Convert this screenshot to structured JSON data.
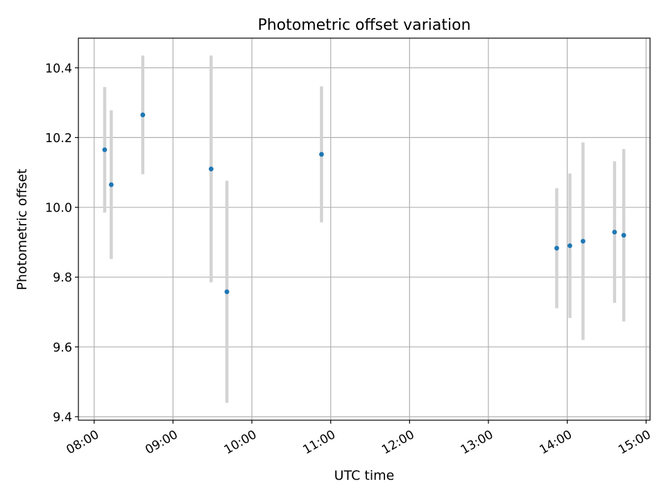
{
  "chart_data": {
    "type": "scatter",
    "title": "Photometric offset variation",
    "xlabel": "UTC time",
    "ylabel": "Photometric offset",
    "x_tick_labels": [
      "08:00",
      "09:00",
      "10:00",
      "11:00",
      "12:00",
      "13:00",
      "14:00",
      "15:00"
    ],
    "y_tick_labels": [
      "9.4",
      "9.6",
      "9.8",
      "10.0",
      "10.2",
      "10.4"
    ],
    "xlim": [
      "07:48",
      "15:03"
    ],
    "ylim": [
      9.39,
      10.485
    ],
    "grid": true,
    "colors": {
      "point": "#1f77b4",
      "errorbar": "#d3d3d3",
      "grid": "#b0b0b0"
    },
    "series": [
      {
        "x": [
          "08:08",
          "08:13",
          "08:37",
          "09:29",
          "09:41",
          "10:53",
          "13:52",
          "14:02",
          "14:12",
          "14:36",
          "14:43"
        ],
        "y": [
          10.165,
          10.065,
          10.265,
          10.11,
          9.758,
          10.152,
          9.883,
          9.89,
          9.903,
          9.929,
          9.92
        ],
        "yerr": [
          0.18,
          0.213,
          0.17,
          0.325,
          0.318,
          0.195,
          0.172,
          0.207,
          0.283,
          0.203,
          0.247
        ]
      }
    ]
  }
}
